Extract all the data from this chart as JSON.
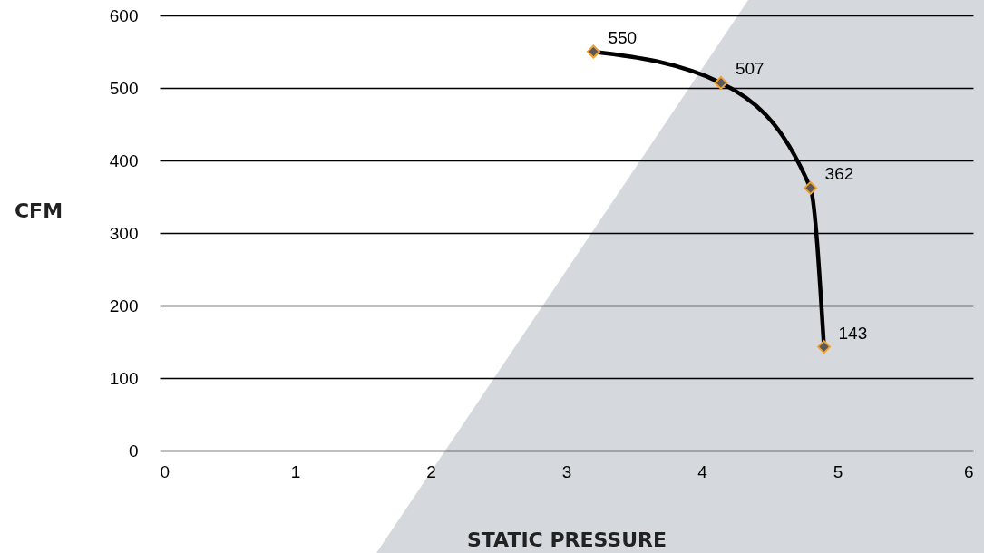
{
  "chart_data": {
    "type": "line",
    "xlabel": "STATIC PRESSURE",
    "ylabel": "CFM",
    "series": [
      {
        "color": "#000000",
        "x": [
          3.2,
          4.14,
          4.8,
          4.9
        ],
        "values": [
          550,
          507,
          362,
          143
        ]
      }
    ],
    "xlim": [
      0,
      6
    ],
    "xticks": [
      0,
      1,
      2,
      3,
      4,
      5,
      6
    ],
    "ylim": [
      0,
      600
    ],
    "yticks": [
      0,
      100,
      200,
      300,
      400,
      500,
      600
    ],
    "grid": "y",
    "marker": "diamond",
    "line_style": "solid",
    "data_labels": true
  }
}
